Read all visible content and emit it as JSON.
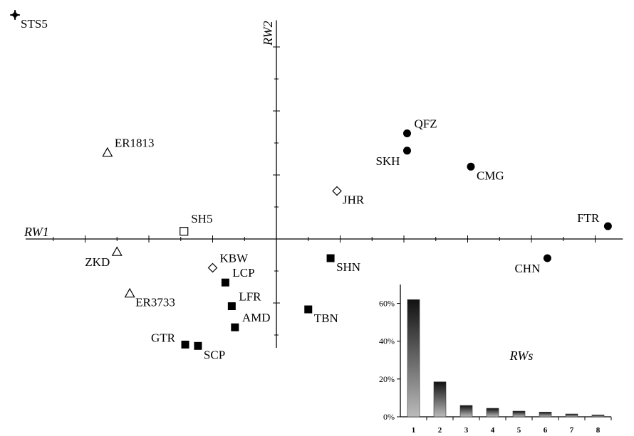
{
  "chart_data": [
    {
      "type": "scatter",
      "xlabel": "RW1",
      "ylabel": "RW2",
      "xlim": [
        -3.9,
        5.4
      ],
      "ylim": [
        -1.7,
        3.45
      ],
      "x_tick_step": 0.5,
      "y_tick_step": 0.5,
      "grid": false,
      "points": [
        {
          "label": "STS5",
          "x": -4.1,
          "y": 3.5,
          "marker": "cross",
          "label_pos": "below-right"
        },
        {
          "label": "ER1813",
          "x": -2.65,
          "y": 1.35,
          "marker": "triangle-open",
          "label_pos": "upper-right"
        },
        {
          "label": "SH5",
          "x": -1.45,
          "y": 0.12,
          "marker": "square-open",
          "label_pos": "above-right"
        },
        {
          "label": "ZKD",
          "x": -2.5,
          "y": -0.2,
          "marker": "triangle-open",
          "label_pos": "below-left"
        },
        {
          "label": "KBW",
          "x": -1.0,
          "y": -0.45,
          "marker": "diamond-open",
          "label_pos": "upper-right"
        },
        {
          "label": "ER3733",
          "x": -2.3,
          "y": -0.85,
          "marker": "triangle-open",
          "label_pos": "below-right"
        },
        {
          "label": "LCP",
          "x": -0.8,
          "y": -0.68,
          "marker": "square-filled",
          "label_pos": "upper-right"
        },
        {
          "label": "LFR",
          "x": -0.7,
          "y": -1.05,
          "marker": "square-filled",
          "label_pos": "upper-right"
        },
        {
          "label": "AMD",
          "x": -0.65,
          "y": -1.38,
          "marker": "square-filled",
          "label_pos": "upper-right"
        },
        {
          "label": "GTR",
          "x": -1.43,
          "y": -1.65,
          "marker": "square-filled",
          "label_pos": "left"
        },
        {
          "label": "SCP",
          "x": -1.23,
          "y": -1.67,
          "marker": "square-filled",
          "label_pos": "below-right"
        },
        {
          "label": "SHN",
          "x": 0.85,
          "y": -0.3,
          "marker": "square-filled",
          "label_pos": "below-right"
        },
        {
          "label": "TBN",
          "x": 0.5,
          "y": -1.1,
          "marker": "square-filled",
          "label_pos": "below-right"
        },
        {
          "label": "JHR",
          "x": 0.95,
          "y": 0.75,
          "marker": "diamond-open",
          "label_pos": "below-right"
        },
        {
          "label": "QFZ",
          "x": 2.05,
          "y": 1.65,
          "marker": "circle-filled",
          "label_pos": "upper-right"
        },
        {
          "label": "SKH",
          "x": 2.05,
          "y": 1.38,
          "marker": "circle-filled",
          "label_pos": "below-left"
        },
        {
          "label": "CMG",
          "x": 3.05,
          "y": 1.13,
          "marker": "circle-filled",
          "label_pos": "below-right"
        },
        {
          "label": "FTR",
          "x": 5.2,
          "y": 0.2,
          "marker": "circle-filled",
          "label_pos": "upper-left"
        },
        {
          "label": "CHN",
          "x": 4.25,
          "y": -0.3,
          "marker": "circle-filled",
          "label_pos": "below-left"
        }
      ]
    },
    {
      "type": "bar",
      "title": "RWs",
      "categories": [
        "1",
        "2",
        "3",
        "4",
        "5",
        "6",
        "7",
        "8"
      ],
      "values": [
        62,
        18.5,
        6,
        4.5,
        3,
        2.5,
        1.5,
        1
      ],
      "ylim": [
        0,
        70
      ],
      "ytick_labels": [
        "0%",
        "20%",
        "40%",
        "60%"
      ],
      "ytick_values": [
        0,
        20,
        40,
        60
      ],
      "bar_gradient": [
        "#111111",
        "#bbbbbb"
      ]
    }
  ]
}
